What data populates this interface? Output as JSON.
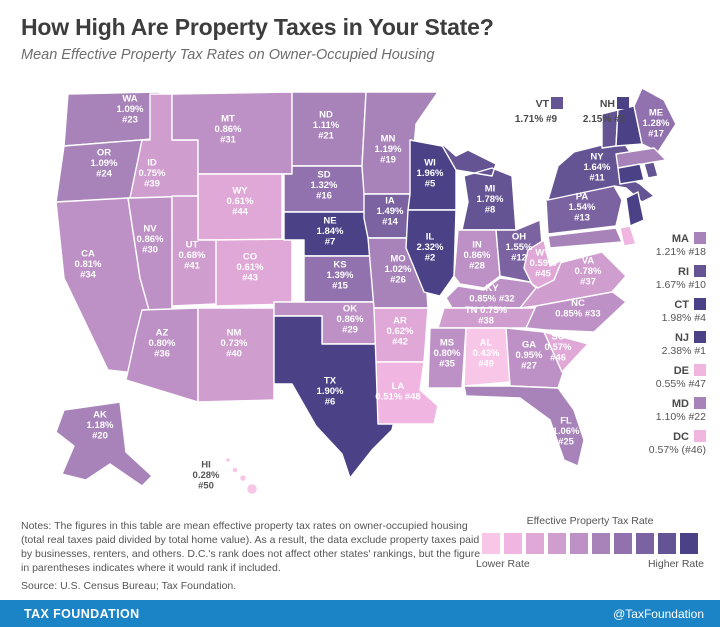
{
  "header": {
    "title": "How High Are Property Taxes in Your State?",
    "subtitle": "Mean Effective Property Tax Rates on Owner-Occupied Housing"
  },
  "map": {
    "states": [
      {
        "abbr": "WA",
        "rate": "1.09%",
        "rank": "#23",
        "bucket": 6,
        "display": "map"
      },
      {
        "abbr": "OR",
        "rate": "1.09%",
        "rank": "#24",
        "bucket": 6,
        "display": "map"
      },
      {
        "abbr": "CA",
        "rate": "0.81%",
        "rank": "#34",
        "bucket": 5,
        "display": "map"
      },
      {
        "abbr": "NV",
        "rate": "0.86%",
        "rank": "#30",
        "bucket": 5,
        "display": "map"
      },
      {
        "abbr": "ID",
        "rate": "0.75%",
        "rank": "#39",
        "bucket": 4,
        "display": "map"
      },
      {
        "abbr": "MT",
        "rate": "0.86%",
        "rank": "#31",
        "bucket": 5,
        "display": "map"
      },
      {
        "abbr": "WY",
        "rate": "0.61%",
        "rank": "#44",
        "bucket": 3,
        "display": "map"
      },
      {
        "abbr": "UT",
        "rate": "0.68%",
        "rank": "#41",
        "bucket": 4,
        "display": "map"
      },
      {
        "abbr": "CO",
        "rate": "0.61%",
        "rank": "#43",
        "bucket": 3,
        "display": "map"
      },
      {
        "abbr": "AZ",
        "rate": "0.80%",
        "rank": "#36",
        "bucket": 5,
        "display": "map"
      },
      {
        "abbr": "NM",
        "rate": "0.73%",
        "rank": "#40",
        "bucket": 4,
        "display": "map"
      },
      {
        "abbr": "ND",
        "rate": "1.11%",
        "rank": "#21",
        "bucket": 6,
        "display": "map"
      },
      {
        "abbr": "SD",
        "rate": "1.32%",
        "rank": "#16",
        "bucket": 7,
        "display": "map"
      },
      {
        "abbr": "NE",
        "rate": "1.84%",
        "rank": "#7",
        "bucket": 10,
        "display": "map"
      },
      {
        "abbr": "KS",
        "rate": "1.39%",
        "rank": "#15",
        "bucket": 7,
        "display": "map"
      },
      {
        "abbr": "OK",
        "rate": "0.86%",
        "rank": "#29",
        "bucket": 5,
        "display": "map"
      },
      {
        "abbr": "TX",
        "rate": "1.90%",
        "rank": "#6",
        "bucket": 10,
        "display": "map"
      },
      {
        "abbr": "MN",
        "rate": "1.19%",
        "rank": "#19",
        "bucket": 6,
        "display": "map"
      },
      {
        "abbr": "IA",
        "rate": "1.49%",
        "rank": "#14",
        "bucket": 8,
        "display": "map"
      },
      {
        "abbr": "MO",
        "rate": "1.02%",
        "rank": "#26",
        "bucket": 6,
        "display": "map"
      },
      {
        "abbr": "AR",
        "rate": "0.62%",
        "rank": "#42",
        "bucket": 3,
        "display": "map"
      },
      {
        "abbr": "LA",
        "rate": "0.51%",
        "rank": "#48",
        "bucket": 2,
        "display": "map"
      },
      {
        "abbr": "WI",
        "rate": "1.96%",
        "rank": "#5",
        "bucket": 10,
        "display": "map"
      },
      {
        "abbr": "IL",
        "rate": "2.32%",
        "rank": "#2",
        "bucket": 10,
        "display": "map"
      },
      {
        "abbr": "MI",
        "rate": "1.78%",
        "rank": "#8",
        "bucket": 9,
        "display": "map"
      },
      {
        "abbr": "IN",
        "rate": "0.86%",
        "rank": "#28",
        "bucket": 5,
        "display": "map"
      },
      {
        "abbr": "OH",
        "rate": "1.55%",
        "rank": "#12",
        "bucket": 8,
        "display": "map"
      },
      {
        "abbr": "KY",
        "rate": "0.85%",
        "rank": "#32",
        "bucket": 5,
        "display": "map"
      },
      {
        "abbr": "TN",
        "rate": "0.75%",
        "rank": "#38",
        "bucket": 4,
        "display": "map"
      },
      {
        "abbr": "MS",
        "rate": "0.80%",
        "rank": "#35",
        "bucket": 5,
        "display": "map"
      },
      {
        "abbr": "AL",
        "rate": "0.43%",
        "rank": "#49",
        "bucket": 1,
        "display": "map"
      },
      {
        "abbr": "GA",
        "rate": "0.95%",
        "rank": "#27",
        "bucket": 5,
        "display": "map"
      },
      {
        "abbr": "FL",
        "rate": "1.06%",
        "rank": "#25",
        "bucket": 6,
        "display": "map"
      },
      {
        "abbr": "SC",
        "rate": "0.57%",
        "rank": "#46",
        "bucket": 3,
        "display": "map"
      },
      {
        "abbr": "NC",
        "rate": "0.85%",
        "rank": "#33",
        "bucket": 5,
        "display": "map"
      },
      {
        "abbr": "VA",
        "rate": "0.78%",
        "rank": "#37",
        "bucket": 4,
        "display": "map"
      },
      {
        "abbr": "WV",
        "rate": "0.59%",
        "rank": "#45",
        "bucket": 3,
        "display": "map"
      },
      {
        "abbr": "PA",
        "rate": "1.54%",
        "rank": "#13",
        "bucket": 8,
        "display": "map"
      },
      {
        "abbr": "NY",
        "rate": "1.64%",
        "rank": "#11",
        "bucket": 9,
        "display": "map"
      },
      {
        "abbr": "ME",
        "rate": "1.28%",
        "rank": "#17",
        "bucket": 7,
        "display": "map"
      },
      {
        "abbr": "AK",
        "rate": "1.18%",
        "rank": "#20",
        "bucket": 6,
        "display": "map"
      },
      {
        "abbr": "HI",
        "rate": "0.28%",
        "rank": "#50",
        "bucket": 1,
        "display": "map"
      },
      {
        "abbr": "VT",
        "rate": "1.71%",
        "rank": "#9",
        "bucket": 9,
        "display": "callout"
      },
      {
        "abbr": "NH",
        "rate": "2.15%",
        "rank": "#3",
        "bucket": 10,
        "display": "callout"
      },
      {
        "abbr": "MA",
        "rate": "1.21%",
        "rank": "#18",
        "bucket": 6,
        "display": "list"
      },
      {
        "abbr": "RI",
        "rate": "1.67%",
        "rank": "#10",
        "bucket": 9,
        "display": "list"
      },
      {
        "abbr": "CT",
        "rate": "1.98%",
        "rank": "#4",
        "bucket": 10,
        "display": "list"
      },
      {
        "abbr": "NJ",
        "rate": "2.38%",
        "rank": "#1",
        "bucket": 10,
        "display": "list"
      },
      {
        "abbr": "DE",
        "rate": "0.55%",
        "rank": "#47",
        "bucket": 2,
        "display": "list"
      },
      {
        "abbr": "MD",
        "rate": "1.10%",
        "rank": "#22",
        "bucket": 6,
        "display": "list"
      },
      {
        "abbr": "DC",
        "rate": "0.57%",
        "rank": "(#46)",
        "bucket": 2,
        "display": "list"
      }
    ]
  },
  "legend": {
    "title": "Effective Property Tax Rate",
    "lower": "Lower Rate",
    "higher": "Higher Rate",
    "colors": [
      "#f8c7e8",
      "#f0b5e0",
      "#e0a8d7",
      "#cf9dce",
      "#bd91c5",
      "#a783ba",
      "#9172ae",
      "#7b63a1",
      "#655494",
      "#4b4187"
    ]
  },
  "notes": {
    "text": "Notes: The figures in this table are mean effective property tax rates on owner-occupied housing (total real taxes paid divided by total home value). As a result, the data exclude property taxes paid by businesses, renters, and others. D.C.'s rank does not affect other states' rankings, but the figure in parentheses indicates where it would rank if included.",
    "source": "Source: U.S. Census Bureau; Tax Foundation."
  },
  "footer": {
    "left": "TAX FOUNDATION",
    "right": "@TaxFoundation",
    "background": "#1b84c7"
  }
}
